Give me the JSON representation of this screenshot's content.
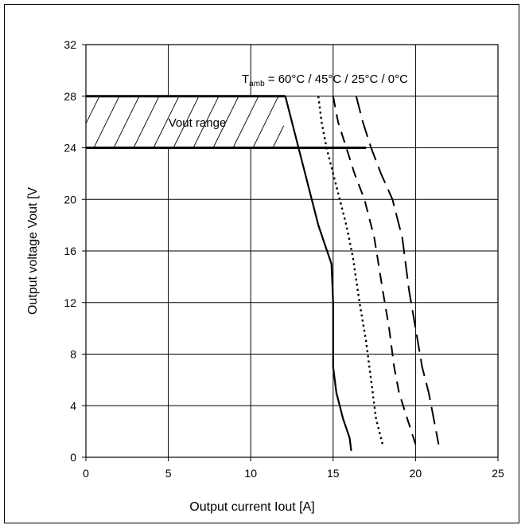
{
  "chart_data": {
    "type": "line",
    "xlabel": "Output current Iout [A]",
    "ylabel": "Output voltage Vout [V",
    "xlim": [
      0,
      25
    ],
    "ylim": [
      0,
      32
    ],
    "xticks": [
      0,
      5,
      10,
      15,
      20,
      25
    ],
    "yticks": [
      0,
      4,
      8,
      12,
      16,
      20,
      24,
      28,
      32
    ],
    "grid": true,
    "annotation": {
      "base": "T",
      "sub": "amb",
      "rest": " = 60°C / 45°C / 25°C / 0°C"
    },
    "range_label": "Vout range",
    "range_band": {
      "y_low": 24,
      "y_high": 28,
      "x_min": 0,
      "x_max_top": 12.1,
      "x_max_bottom": 17.0
    },
    "series": [
      {
        "style": "solid",
        "x": [
          12.1,
          12.5,
          12.9,
          13.3,
          13.7,
          14.1,
          14.5,
          14.9,
          15.0,
          15.0,
          15.2,
          15.6,
          16.0,
          16.1
        ],
        "y": [
          28,
          26,
          24,
          22,
          20,
          18,
          16.5,
          15,
          12,
          7,
          5,
          3,
          1.5,
          0.5
        ]
      },
      {
        "style": "dotted",
        "x": [
          14.1,
          14.3,
          14.6,
          15.0,
          15.4,
          15.8,
          16.2,
          16.6,
          17.0,
          17.3,
          17.6,
          18.0
        ],
        "y": [
          28,
          26,
          24,
          22,
          20,
          18,
          15.5,
          12,
          9,
          6,
          3,
          1
        ]
      },
      {
        "style": "dashed",
        "x": [
          15.0,
          15.3,
          15.8,
          16.3,
          16.9,
          17.5,
          18.0,
          18.4,
          18.7,
          19.0,
          19.5,
          20.0
        ],
        "y": [
          28,
          26,
          24,
          22,
          20,
          17,
          13,
          10,
          7,
          5,
          3,
          1
        ]
      },
      {
        "style": "longdash",
        "x": [
          16.4,
          16.8,
          17.3,
          17.9,
          18.6,
          19.2,
          19.6,
          20.0,
          20.4,
          20.8,
          21.1,
          21.4
        ],
        "y": [
          28,
          26,
          24,
          22,
          20,
          17,
          13,
          10,
          7,
          5,
          3,
          1
        ]
      }
    ]
  }
}
